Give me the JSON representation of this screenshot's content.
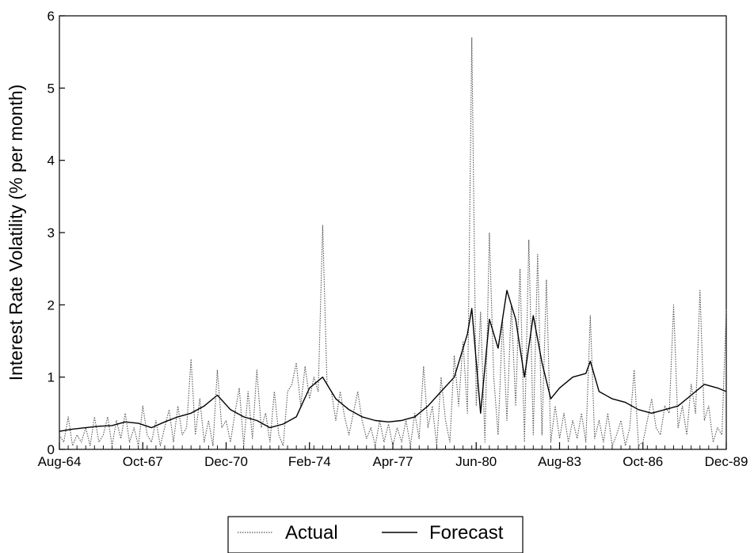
{
  "chart_data": {
    "type": "line",
    "title": "",
    "xlabel": "",
    "ylabel": "Interest Rate Volatility (% per month)",
    "ylim": [
      0,
      6
    ],
    "yticks": [
      "0",
      "1",
      "2",
      "3",
      "4",
      "5",
      "6"
    ],
    "x_start": "Aug-64",
    "x_end": "Dec-89",
    "xticks": [
      "Aug-64",
      "Oct-67",
      "Dec-70",
      "Feb-74",
      "Apr-77",
      "Jun-80",
      "Aug-83",
      "Oct-86",
      "Dec-89"
    ],
    "grid": false,
    "legend_position": "bottom",
    "series": [
      {
        "name": "Actual",
        "style": "dotted",
        "color": "#555555",
        "points": [
          [
            "Aug-64",
            0.2
          ],
          [
            "Oct-64",
            0.1
          ],
          [
            "Dec-64",
            0.45
          ],
          [
            "Feb-65",
            0.05
          ],
          [
            "Apr-65",
            0.2
          ],
          [
            "Jun-65",
            0.1
          ],
          [
            "Aug-65",
            0.3
          ],
          [
            "Oct-65",
            0.05
          ],
          [
            "Dec-65",
            0.45
          ],
          [
            "Feb-66",
            0.1
          ],
          [
            "Apr-66",
            0.2
          ],
          [
            "Jun-66",
            0.45
          ],
          [
            "Aug-66",
            0.05
          ],
          [
            "Oct-66",
            0.4
          ],
          [
            "Dec-66",
            0.15
          ],
          [
            "Feb-67",
            0.5
          ],
          [
            "Apr-67",
            0.1
          ],
          [
            "Jun-67",
            0.3
          ],
          [
            "Aug-67",
            0.05
          ],
          [
            "Oct-67",
            0.6
          ],
          [
            "Dec-67",
            0.2
          ],
          [
            "Feb-68",
            0.1
          ],
          [
            "Apr-68",
            0.4
          ],
          [
            "Jun-68",
            0.05
          ],
          [
            "Aug-68",
            0.3
          ],
          [
            "Oct-68",
            0.55
          ],
          [
            "Dec-68",
            0.1
          ],
          [
            "Feb-69",
            0.6
          ],
          [
            "Apr-69",
            0.2
          ],
          [
            "Jun-69",
            0.3
          ],
          [
            "Aug-69",
            1.25
          ],
          [
            "Oct-69",
            0.2
          ],
          [
            "Dec-69",
            0.7
          ],
          [
            "Feb-70",
            0.1
          ],
          [
            "Apr-70",
            0.4
          ],
          [
            "Jun-70",
            0.05
          ],
          [
            "Aug-70",
            1.1
          ],
          [
            "Oct-70",
            0.3
          ],
          [
            "Dec-70",
            0.4
          ],
          [
            "Feb-71",
            0.1
          ],
          [
            "Apr-71",
            0.5
          ],
          [
            "Jun-71",
            0.85
          ],
          [
            "Aug-71",
            0.05
          ],
          [
            "Oct-71",
            0.8
          ],
          [
            "Dec-71",
            0.15
          ],
          [
            "Feb-72",
            1.1
          ],
          [
            "Apr-72",
            0.3
          ],
          [
            "Jun-72",
            0.5
          ],
          [
            "Aug-72",
            0.1
          ],
          [
            "Oct-72",
            0.8
          ],
          [
            "Dec-72",
            0.2
          ],
          [
            "Feb-73",
            0.05
          ],
          [
            "Apr-73",
            0.8
          ],
          [
            "Jun-73",
            0.9
          ],
          [
            "Aug-73",
            1.2
          ],
          [
            "Oct-73",
            0.6
          ],
          [
            "Dec-73",
            1.15
          ],
          [
            "Feb-74",
            0.7
          ],
          [
            "Apr-74",
            1.0
          ],
          [
            "Jun-74",
            0.8
          ],
          [
            "Aug-74",
            3.1
          ],
          [
            "Oct-74",
            0.9
          ],
          [
            "Dec-74",
            0.8
          ],
          [
            "Feb-75",
            0.4
          ],
          [
            "Apr-75",
            0.8
          ],
          [
            "Jun-75",
            0.45
          ],
          [
            "Aug-75",
            0.2
          ],
          [
            "Oct-75",
            0.5
          ],
          [
            "Dec-75",
            0.8
          ],
          [
            "Feb-76",
            0.4
          ],
          [
            "Apr-76",
            0.15
          ],
          [
            "Jun-76",
            0.3
          ],
          [
            "Aug-76",
            0.05
          ],
          [
            "Oct-76",
            0.4
          ],
          [
            "Dec-76",
            0.1
          ],
          [
            "Feb-77",
            0.35
          ],
          [
            "Apr-77",
            0.05
          ],
          [
            "Jun-77",
            0.3
          ],
          [
            "Aug-77",
            0.1
          ],
          [
            "Oct-77",
            0.4
          ],
          [
            "Dec-77",
            0.05
          ],
          [
            "Feb-78",
            0.5
          ],
          [
            "Apr-78",
            0.15
          ],
          [
            "Jun-78",
            1.15
          ],
          [
            "Aug-78",
            0.3
          ],
          [
            "Oct-78",
            0.6
          ],
          [
            "Dec-78",
            0.05
          ],
          [
            "Feb-79",
            1.0
          ],
          [
            "Apr-79",
            0.4
          ],
          [
            "Jun-79",
            0.1
          ],
          [
            "Aug-79",
            1.3
          ],
          [
            "Oct-79",
            0.6
          ],
          [
            "Dec-79",
            1.5
          ],
          [
            "Feb-80",
            0.5
          ],
          [
            "Apr-80",
            5.7
          ],
          [
            "Jun-80",
            0.6
          ],
          [
            "Aug-80",
            1.9
          ],
          [
            "Oct-80",
            0.1
          ],
          [
            "Dec-80",
            3.0
          ],
          [
            "Feb-81",
            1.0
          ],
          [
            "Apr-81",
            0.2
          ],
          [
            "Jun-81",
            1.8
          ],
          [
            "Aug-81",
            0.4
          ],
          [
            "Oct-81",
            2.0
          ],
          [
            "Dec-81",
            0.6
          ],
          [
            "Feb-82",
            2.5
          ],
          [
            "Apr-82",
            0.1
          ],
          [
            "Jun-82",
            2.9
          ],
          [
            "Aug-82",
            0.2
          ],
          [
            "Oct-82",
            2.7
          ],
          [
            "Dec-82",
            0.2
          ],
          [
            "Feb-83",
            2.35
          ],
          [
            "Apr-83",
            0.1
          ],
          [
            "Jun-83",
            0.6
          ],
          [
            "Aug-83",
            0.15
          ],
          [
            "Oct-83",
            0.5
          ],
          [
            "Dec-83",
            0.1
          ],
          [
            "Feb-84",
            0.4
          ],
          [
            "Apr-84",
            0.15
          ],
          [
            "Jun-84",
            0.5
          ],
          [
            "Aug-84",
            0.1
          ],
          [
            "Oct-84",
            1.85
          ],
          [
            "Dec-84",
            0.15
          ],
          [
            "Feb-85",
            0.4
          ],
          [
            "Apr-85",
            0.1
          ],
          [
            "Jun-85",
            0.5
          ],
          [
            "Aug-85",
            0.05
          ],
          [
            "Oct-85",
            0.2
          ],
          [
            "Dec-85",
            0.4
          ],
          [
            "Feb-86",
            0.05
          ],
          [
            "Apr-86",
            0.3
          ],
          [
            "Jun-86",
            1.1
          ],
          [
            "Aug-86",
            0.05
          ],
          [
            "Oct-86",
            0.1
          ],
          [
            "Dec-86",
            0.4
          ],
          [
            "Feb-87",
            0.7
          ],
          [
            "Apr-87",
            0.3
          ],
          [
            "Jun-87",
            0.2
          ],
          [
            "Aug-87",
            0.6
          ],
          [
            "Oct-87",
            0.5
          ],
          [
            "Dec-87",
            2.0
          ],
          [
            "Feb-88",
            0.3
          ],
          [
            "Apr-88",
            0.6
          ],
          [
            "Jun-88",
            0.2
          ],
          [
            "Aug-88",
            0.9
          ],
          [
            "Oct-88",
            0.5
          ],
          [
            "Dec-88",
            2.2
          ],
          [
            "Feb-89",
            0.4
          ],
          [
            "Apr-89",
            0.6
          ],
          [
            "Jun-89",
            0.1
          ],
          [
            "Aug-89",
            0.3
          ],
          [
            "Oct-89",
            0.2
          ],
          [
            "Dec-89",
            1.95
          ]
        ]
      },
      {
        "name": "Forecast",
        "style": "solid",
        "color": "#000000",
        "points": [
          [
            "Aug-64",
            0.25
          ],
          [
            "Feb-65",
            0.28
          ],
          [
            "Aug-65",
            0.3
          ],
          [
            "Feb-66",
            0.32
          ],
          [
            "Aug-66",
            0.33
          ],
          [
            "Feb-67",
            0.38
          ],
          [
            "Aug-67",
            0.36
          ],
          [
            "Feb-68",
            0.3
          ],
          [
            "Aug-68",
            0.38
          ],
          [
            "Feb-69",
            0.45
          ],
          [
            "Aug-69",
            0.5
          ],
          [
            "Feb-70",
            0.6
          ],
          [
            "Aug-70",
            0.75
          ],
          [
            "Feb-71",
            0.55
          ],
          [
            "Aug-71",
            0.45
          ],
          [
            "Feb-72",
            0.4
          ],
          [
            "Aug-72",
            0.3
          ],
          [
            "Feb-73",
            0.35
          ],
          [
            "Aug-73",
            0.45
          ],
          [
            "Feb-74",
            0.85
          ],
          [
            "Aug-74",
            1.0
          ],
          [
            "Feb-75",
            0.7
          ],
          [
            "Aug-75",
            0.55
          ],
          [
            "Feb-76",
            0.45
          ],
          [
            "Aug-76",
            0.4
          ],
          [
            "Feb-77",
            0.38
          ],
          [
            "Aug-77",
            0.4
          ],
          [
            "Feb-78",
            0.45
          ],
          [
            "Aug-78",
            0.6
          ],
          [
            "Feb-79",
            0.8
          ],
          [
            "Aug-79",
            1.0
          ],
          [
            "Feb-80",
            1.6
          ],
          [
            "Apr-80",
            1.95
          ],
          [
            "Aug-80",
            0.5
          ],
          [
            "Dec-80",
            1.8
          ],
          [
            "Apr-81",
            1.4
          ],
          [
            "Aug-81",
            2.2
          ],
          [
            "Dec-81",
            1.8
          ],
          [
            "Apr-82",
            1.0
          ],
          [
            "Aug-82",
            1.85
          ],
          [
            "Dec-82",
            1.2
          ],
          [
            "Apr-83",
            0.7
          ],
          [
            "Aug-83",
            0.85
          ],
          [
            "Feb-84",
            1.0
          ],
          [
            "Aug-84",
            1.05
          ],
          [
            "Oct-84",
            1.22
          ],
          [
            "Feb-85",
            0.8
          ],
          [
            "Aug-85",
            0.7
          ],
          [
            "Feb-86",
            0.65
          ],
          [
            "Aug-86",
            0.55
          ],
          [
            "Feb-87",
            0.5
          ],
          [
            "Aug-87",
            0.55
          ],
          [
            "Feb-88",
            0.6
          ],
          [
            "Aug-88",
            0.75
          ],
          [
            "Feb-89",
            0.9
          ],
          [
            "Aug-89",
            0.85
          ],
          [
            "Dec-89",
            0.8
          ]
        ]
      }
    ]
  }
}
